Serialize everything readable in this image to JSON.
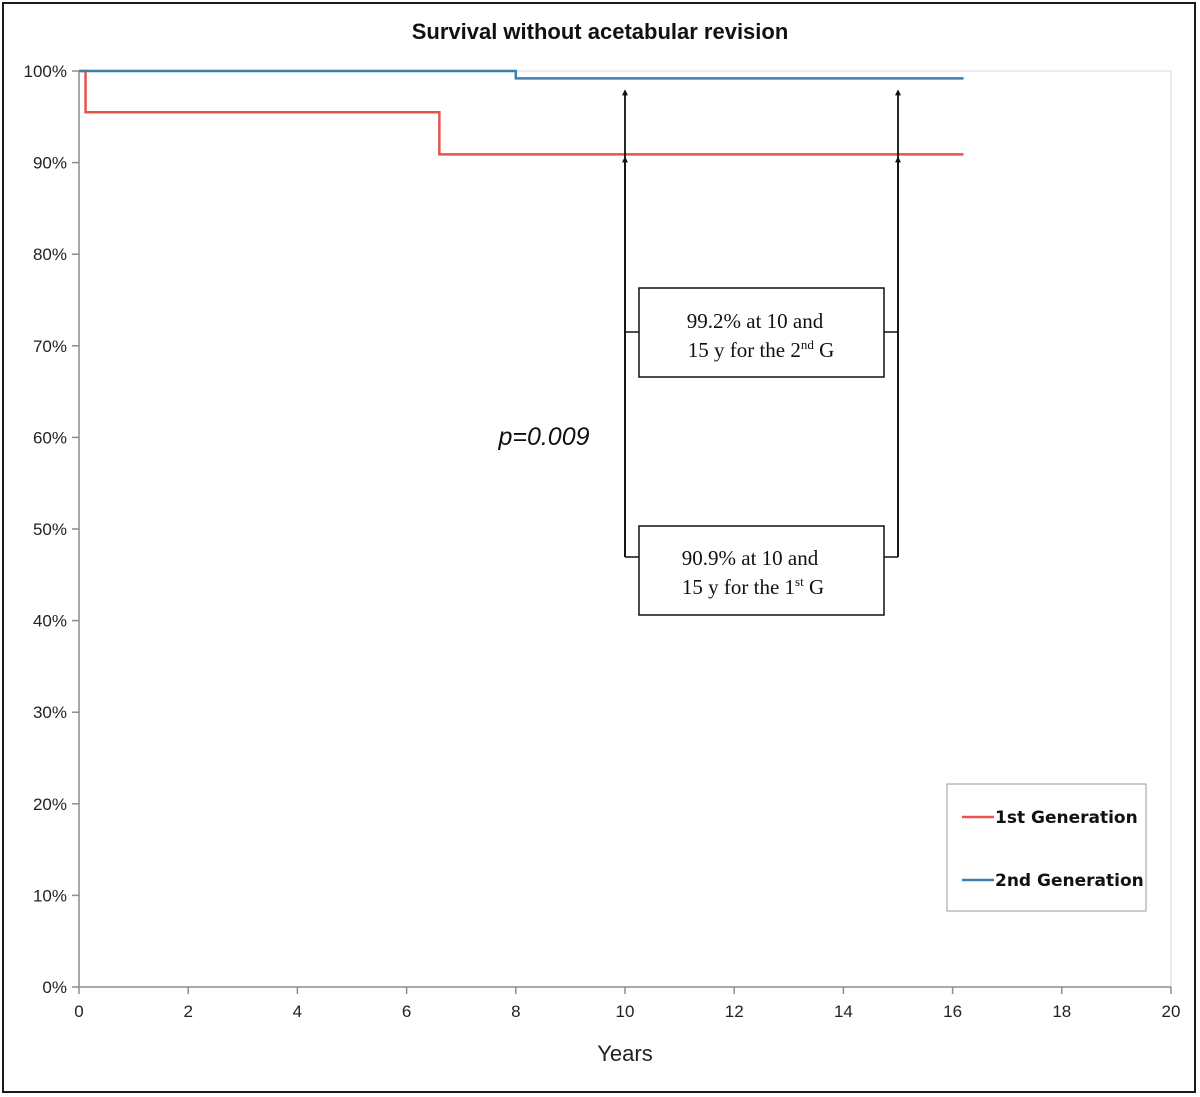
{
  "chart_data": {
    "type": "line",
    "title": "Survival without acetabular revision",
    "xlabel": "Years",
    "ylabel": "",
    "xlim": [
      0,
      20
    ],
    "ylim": [
      0,
      100
    ],
    "x_ticks": [
      0,
      2,
      4,
      6,
      8,
      10,
      12,
      14,
      16,
      18,
      20
    ],
    "x_tick_labels": [
      "0",
      "2",
      "4",
      "6",
      "8",
      "10",
      "12",
      "14",
      "16",
      "18",
      "20"
    ],
    "y_ticks": [
      0,
      10,
      20,
      30,
      40,
      50,
      60,
      70,
      80,
      90,
      100
    ],
    "y_tick_labels": [
      "0%",
      "10%",
      "20%",
      "30%",
      "40%",
      "50%",
      "60%",
      "70%",
      "80%",
      "90%",
      "100%"
    ],
    "grid": false,
    "legend_position": "bottom-right",
    "series": [
      {
        "name": "1st Generation",
        "color": "#e8524f",
        "step": true,
        "x": [
          0,
          0.12,
          6.6,
          16.2
        ],
        "y": [
          100,
          95.5,
          90.9,
          90.9
        ]
      },
      {
        "name": "2nd Generation",
        "color": "#3f7fab",
        "step": true,
        "x": [
          0,
          8.0,
          16.2
        ],
        "y": [
          100,
          99.2,
          99.2
        ]
      }
    ],
    "annotations": {
      "p_value": "p=0.009",
      "arrow_years": [
        10,
        15
      ],
      "box_2nd": {
        "line1": "99.2% at 10 and",
        "line2_prefix": "15 y for the 2",
        "line2_sup": "nd",
        "line2_suffix": " G"
      },
      "box_1st": {
        "line1": "90.9% at 10 and",
        "line2_prefix": "15 y for the 1",
        "line2_sup": "st",
        "line2_suffix": " G"
      }
    }
  }
}
